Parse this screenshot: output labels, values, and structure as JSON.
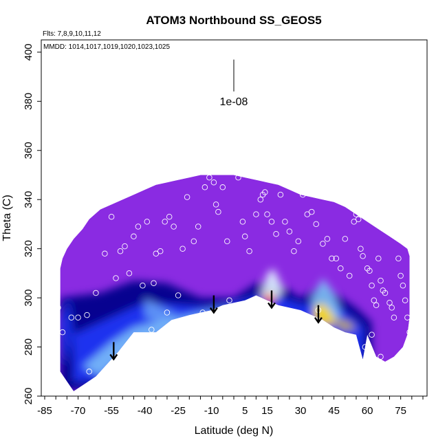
{
  "chart_data": {
    "type": "heatmap",
    "title": "ATOM3 Northbound SS_GEOS5",
    "subtitle_flights": "Flts: 7,8,9,10,11,12",
    "subtitle_mmdd": "MMDD: 1014,1017,1019,1020,1023,1025",
    "xlabel": "Latitude (deg N)",
    "ylabel": "Theta (C)",
    "xlim": [
      -85,
      85
    ],
    "ylim": [
      260,
      405
    ],
    "x_ticks": [
      -85,
      -70,
      -55,
      -40,
      -25,
      -10,
      5,
      15,
      30,
      45,
      60,
      75
    ],
    "y_ticks": [
      260,
      280,
      300,
      320,
      340,
      360,
      380,
      400
    ],
    "scale_bar_label": "1e-08",
    "scale_bar": {
      "lat": 0,
      "theta_top": 397,
      "theta_bottom": 384
    },
    "colors": {
      "background": "#8a2be2",
      "deep_blue": "#00008b",
      "blue": "#1e3cff",
      "light_blue": "#87cefa",
      "pale": "#e0f4ff",
      "yellow": "#ffd700",
      "orange": "#ff8c00",
      "red": "#ff1a00",
      "marker": "#ffffff"
    },
    "domain_top": [
      [
        -78,
        312
      ],
      [
        -77,
        316
      ],
      [
        -75,
        320
      ],
      [
        -72,
        324
      ],
      [
        -68,
        328
      ],
      [
        -65,
        332
      ],
      [
        -60,
        336
      ],
      [
        -55,
        338
      ],
      [
        -50,
        340
      ],
      [
        -45,
        342
      ],
      [
        -40,
        344
      ],
      [
        -35,
        346
      ],
      [
        -30,
        347
      ],
      [
        -25,
        348
      ],
      [
        -20,
        349
      ],
      [
        -15,
        350
      ],
      [
        -10,
        350
      ],
      [
        0,
        350
      ],
      [
        5,
        349
      ],
      [
        10,
        348
      ],
      [
        15,
        347
      ],
      [
        20,
        346
      ],
      [
        25,
        344
      ],
      [
        30,
        342
      ],
      [
        35,
        341
      ],
      [
        40,
        340
      ],
      [
        45,
        339
      ],
      [
        50,
        337
      ],
      [
        55,
        334
      ],
      [
        60,
        331
      ],
      [
        65,
        328
      ],
      [
        70,
        325
      ],
      [
        75,
        322
      ],
      [
        78,
        320
      ],
      [
        79,
        317
      ]
    ],
    "domain_bottom": [
      [
        -78,
        270
      ],
      [
        -72,
        262
      ],
      [
        -62,
        268
      ],
      [
        -52,
        278
      ],
      [
        -45,
        286
      ],
      [
        -35,
        286
      ],
      [
        -28,
        291
      ],
      [
        -20,
        293
      ],
      [
        -10,
        295
      ],
      [
        -5,
        297
      ],
      [
        0,
        298
      ],
      [
        5,
        299
      ],
      [
        10,
        301
      ],
      [
        15,
        299
      ],
      [
        20,
        297
      ],
      [
        25,
        296
      ],
      [
        30,
        295
      ],
      [
        35,
        293
      ],
      [
        40,
        291
      ],
      [
        45,
        288
      ],
      [
        50,
        286
      ],
      [
        55,
        285
      ],
      [
        58,
        275
      ],
      [
        60,
        285
      ],
      [
        64,
        276
      ],
      [
        68,
        274
      ],
      [
        72,
        276
      ],
      [
        76,
        280
      ],
      [
        78,
        285
      ],
      [
        79,
        292
      ]
    ],
    "arrows": [
      {
        "lat": -54,
        "theta_top": 282,
        "theta_bottom": 275
      },
      {
        "lat": -9,
        "theta_top": 301,
        "theta_bottom": 294
      },
      {
        "lat": 17,
        "theta_top": 303,
        "theta_bottom": 296
      },
      {
        "lat": 38,
        "theta_top": 297,
        "theta_bottom": 290
      }
    ],
    "markers": [
      [
        -80,
        311
      ],
      [
        -79,
        296
      ],
      [
        -77,
        286
      ],
      [
        -73,
        292
      ],
      [
        -70,
        292
      ],
      [
        -66,
        293
      ],
      [
        -65,
        270
      ],
      [
        -62,
        302
      ],
      [
        -58,
        318
      ],
      [
        -55,
        333
      ],
      [
        -53,
        308
      ],
      [
        -51,
        319
      ],
      [
        -49,
        321
      ],
      [
        -47,
        310
      ],
      [
        -45,
        325
      ],
      [
        -43,
        329
      ],
      [
        -41,
        305
      ],
      [
        -39,
        331
      ],
      [
        -37,
        287
      ],
      [
        -36,
        306
      ],
      [
        -35,
        318
      ],
      [
        -33,
        319
      ],
      [
        -31,
        331
      ],
      [
        -29,
        333
      ],
      [
        -27,
        329
      ],
      [
        -25,
        301
      ],
      [
        -23,
        320
      ],
      [
        -21,
        341
      ],
      [
        -18,
        323
      ],
      [
        -16,
        329
      ],
      [
        -13,
        345
      ],
      [
        -11,
        349
      ],
      [
        -9,
        347
      ],
      [
        -8,
        338
      ],
      [
        -7,
        335
      ],
      [
        -5,
        345
      ],
      [
        -3,
        323
      ],
      [
        -2,
        299
      ],
      [
        2,
        349
      ],
      [
        4,
        331
      ],
      [
        5,
        325
      ],
      [
        7,
        319
      ],
      [
        10,
        334
      ],
      [
        12,
        340
      ],
      [
        13,
        342
      ],
      [
        14,
        343
      ],
      [
        15,
        334
      ],
      [
        17,
        331
      ],
      [
        19,
        326
      ],
      [
        21,
        342
      ],
      [
        23,
        331
      ],
      [
        25,
        327
      ],
      [
        27,
        319
      ],
      [
        29,
        323
      ],
      [
        31,
        342
      ],
      [
        33,
        334
      ],
      [
        35,
        335
      ],
      [
        37,
        330
      ],
      [
        38,
        295
      ],
      [
        40,
        322
      ],
      [
        42,
        324
      ],
      [
        44,
        316
      ],
      [
        46,
        316
      ],
      [
        48,
        312
      ],
      [
        50,
        324
      ],
      [
        52,
        309
      ],
      [
        54,
        331
      ],
      [
        55,
        334
      ],
      [
        56,
        332
      ],
      [
        57,
        320
      ],
      [
        58,
        317
      ],
      [
        60,
        312
      ],
      [
        61,
        311
      ],
      [
        62,
        305
      ],
      [
        63,
        299
      ],
      [
        64,
        297
      ],
      [
        65,
        316
      ],
      [
        66,
        307
      ],
      [
        67,
        303
      ],
      [
        68,
        302
      ],
      [
        70,
        298
      ],
      [
        71,
        296
      ],
      [
        72,
        292
      ],
      [
        74,
        316
      ],
      [
        75,
        309
      ],
      [
        76,
        305
      ],
      [
        77,
        299
      ],
      [
        78,
        292
      ],
      [
        79,
        286
      ],
      [
        59,
        280
      ],
      [
        62,
        285
      ],
      [
        66,
        276
      ],
      [
        -30,
        294
      ],
      [
        -14,
        294
      ]
    ]
  }
}
